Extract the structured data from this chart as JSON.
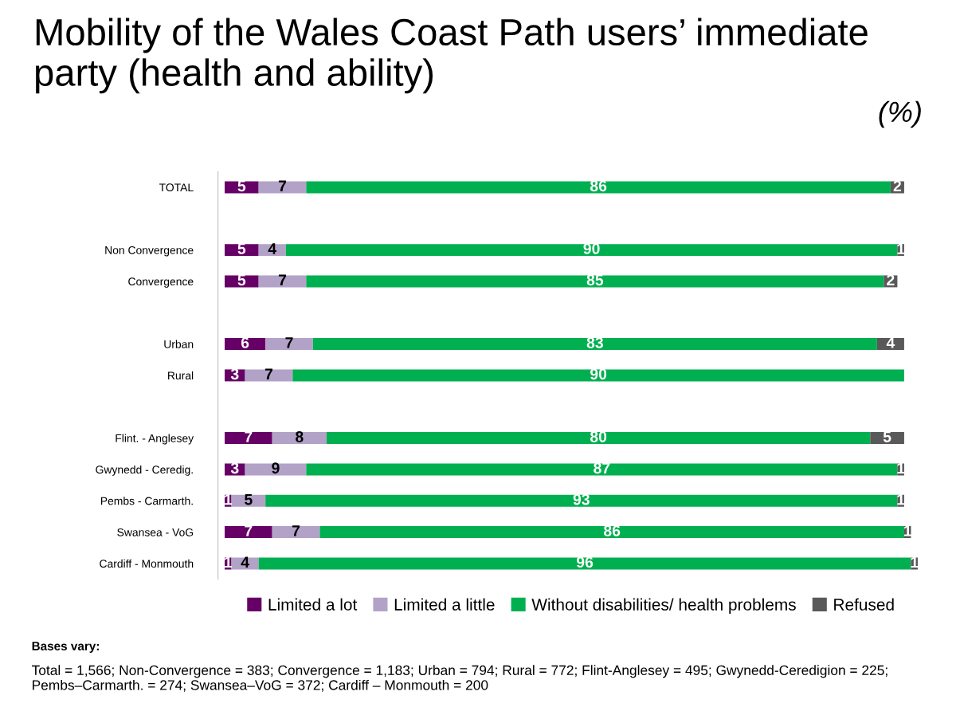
{
  "chart_data": {
    "type": "bar",
    "orientation": "horizontal",
    "stacked": true,
    "title": "Mobility of the Wales Coast Path users’ immediate party (health and ability)",
    "subtitle": "(%)",
    "categories": [
      "TOTAL",
      null,
      "Non Convergence",
      "Convergence",
      null,
      "Urban",
      "Rural",
      null,
      "Flint. - Anglesey",
      "Gwynedd - Ceredig.",
      "Pembs - Carmarth.",
      "Swansea - VoG",
      "Cardiff - Monmouth"
    ],
    "series": [
      {
        "name": "Limited a lot",
        "color": "#660066",
        "values": [
          5,
          null,
          5,
          5,
          null,
          6,
          3,
          null,
          7,
          3,
          1,
          7,
          1
        ]
      },
      {
        "name": "Limited a little",
        "color": "#b3a2c7",
        "values": [
          7,
          null,
          4,
          7,
          null,
          7,
          7,
          null,
          8,
          9,
          5,
          7,
          4
        ]
      },
      {
        "name": "Without disabilities/ health problems",
        "color": "#00b050",
        "values": [
          86,
          null,
          90,
          85,
          null,
          83,
          90,
          null,
          80,
          87,
          93,
          86,
          96
        ]
      },
      {
        "name": "Refused",
        "color": "#595959",
        "values": [
          2,
          null,
          1,
          2,
          null,
          4,
          null,
          null,
          5,
          1,
          1,
          1,
          1
        ]
      }
    ],
    "data_labels": true,
    "legend": "bottom",
    "grid": false,
    "annotations": [
      "Bases vary:",
      "Total = 1,566; Non-Convergence = 383; Convergence = 1,183; Urban = 794; Rural = 772; Flint-Anglesey = 495; Gwynedd-Ceredigion = 225; Pembs–Carmarth. = 274; Swansea–VoG = 372; Cardiff – Monmouth = 200"
    ]
  }
}
